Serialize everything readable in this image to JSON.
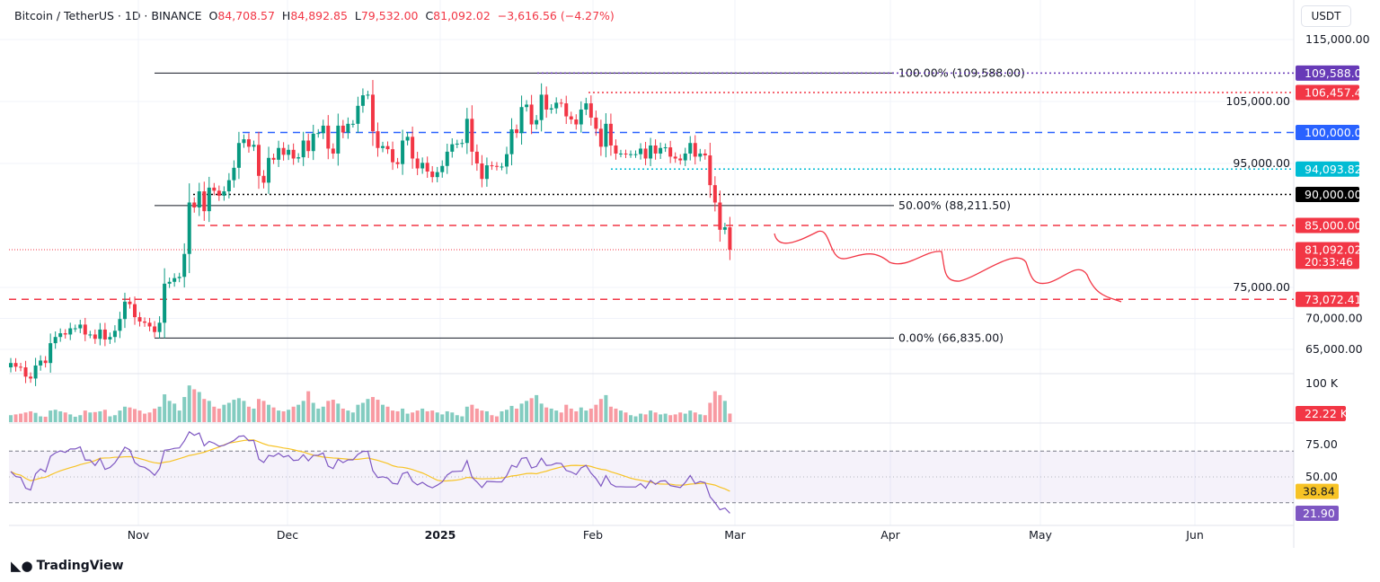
{
  "header": {
    "symbol": "Bitcoin / TetherUS · 1D · BINANCE",
    "o_label": "O",
    "o": "84,708.57",
    "h_label": "H",
    "h": "84,892.85",
    "l_label": "L",
    "l": "79,532.00",
    "c_label": "C",
    "c": "81,092.02",
    "change": "−3,616.56 (−4.27%)"
  },
  "currency": "USDT",
  "brand": "TradingView",
  "colors": {
    "up": "#089981",
    "down": "#f23645",
    "rsi": "#7e57c2",
    "rsi_ma": "#f7c325"
  },
  "chart_data": {
    "type": "candlestick",
    "start_date": "2024-10-06",
    "closes": [
      62800,
      62200,
      62100,
      60600,
      60300,
      62400,
      63200,
      62800,
      66000,
      67000,
      67600,
      67400,
      68400,
      68400,
      69000,
      67400,
      67400,
      66700,
      68200,
      66600,
      67000,
      68000,
      69900,
      72700,
      72300,
      70200,
      69500,
      69300,
      68700,
      67800,
      69300,
      75600,
      75900,
      76500,
      76700,
      80400,
      88700,
      87900,
      90500,
      87300,
      91100,
      90600,
      89800,
      90500,
      92300,
      94300,
      98300,
      98900,
      97700,
      98000,
      93000,
      91900,
      95900,
      95600,
      97500,
      96400,
      97200,
      95800,
      96000,
      98700,
      97000,
      99800,
      99900,
      101100,
      97400,
      96600,
      101100,
      100000,
      101400,
      101400,
      104300,
      106000,
      106100,
      100200,
      97500,
      97800,
      97300,
      95200,
      94900,
      98700,
      99300,
      95800,
      94200,
      95100,
      93700,
      92800,
      93600,
      94600,
      96900,
      98100,
      98200,
      98300,
      102200,
      96900,
      95000,
      92500,
      94700,
      94600,
      94500,
      94500,
      96500,
      100500,
      99900,
      104100,
      104500,
      101300,
      102000,
      106100,
      103700,
      103900,
      104800,
      104700,
      102600,
      102100,
      101300,
      103700,
      104700,
      102400,
      100600,
      97700,
      101400,
      97900,
      96600,
      96600,
      96500,
      96500,
      96500,
      97400,
      95800,
      97900,
      96600,
      97500,
      97600,
      96100,
      95800,
      95500,
      96600,
      98300,
      96100,
      96600,
      96300,
      91500,
      88700,
      84300,
      84700,
      81092.02
    ],
    "volumes_k": [
      18,
      20,
      22,
      25,
      28,
      24,
      15,
      14,
      30,
      32,
      28,
      25,
      20,
      14,
      18,
      30,
      25,
      26,
      28,
      32,
      15,
      18,
      30,
      40,
      38,
      34,
      30,
      22,
      25,
      35,
      40,
      72,
      55,
      48,
      30,
      65,
      95,
      85,
      78,
      60,
      55,
      40,
      35,
      45,
      50,
      58,
      62,
      55,
      40,
      35,
      60,
      55,
      45,
      38,
      30,
      28,
      32,
      40,
      45,
      55,
      80,
      50,
      35,
      40,
      55,
      58,
      48,
      35,
      30,
      25,
      45,
      50,
      60,
      65,
      58,
      45,
      40,
      30,
      28,
      35,
      22,
      25,
      30,
      35,
      28,
      30,
      25,
      20,
      28,
      25,
      18,
      15,
      40,
      45,
      35,
      30,
      28,
      18,
      15,
      28,
      32,
      42,
      35,
      48,
      55,
      62,
      70,
      48,
      38,
      35,
      30,
      25,
      45,
      35,
      28,
      38,
      30,
      35,
      45,
      60,
      70,
      40,
      35,
      30,
      25,
      18,
      15,
      22,
      20,
      30,
      25,
      20,
      22,
      18,
      20,
      25,
      22,
      30,
      25,
      20,
      18,
      50,
      80,
      70,
      55,
      22.22
    ],
    "price_axis": {
      "ticks": [
        "115,000.00",
        "105,000.00",
        "95,000.00",
        "75,000.00",
        "70,000.00",
        "65,000.00"
      ],
      "tick_values": [
        115000,
        105000,
        95000,
        75000,
        70000,
        65000
      ],
      "range": [
        60000,
        117000
      ]
    },
    "time_axis": [
      "Nov",
      "Dec",
      "2025",
      "Feb",
      "Mar",
      "Apr",
      "May",
      "Jun"
    ],
    "levels": [
      {
        "value": 109588,
        "label": "109,588.00",
        "color": "#673ab7",
        "style": "dotted"
      },
      {
        "value": 106457.44,
        "label": "106,457.44",
        "color": "#f23645",
        "style": "dotted"
      },
      {
        "value": 100000,
        "label": "100,000.00",
        "color": "#2962ff",
        "style": "dashed"
      },
      {
        "value": 94093.82,
        "label": "94,093.82",
        "color": "#00bcd4",
        "style": "dotted"
      },
      {
        "value": 90000,
        "label": "90,000.00",
        "color": "#000000",
        "style": "dotted"
      },
      {
        "value": 85000,
        "label": "85,000.00",
        "color": "#f23645",
        "style": "dashed"
      },
      {
        "value": 81092.02,
        "label": "81,092.02",
        "sublabel": "20:33:46",
        "color": "#f23645",
        "style": "dotted"
      },
      {
        "value": 73072.41,
        "label": "73,072.41",
        "color": "#f23645",
        "style": "dashed"
      }
    ],
    "fibonacci": [
      {
        "value": 109588,
        "label": "100.00% (109,588.00)"
      },
      {
        "value": 88211.5,
        "label": "50.00% (88,211.50)"
      },
      {
        "value": 66835,
        "label": "0.00% (66,835.00)"
      }
    ],
    "volume_axis": {
      "tick": "100 K",
      "last": "22.22 K"
    },
    "rsi": {
      "ticks": [
        "75.00",
        "50.00"
      ],
      "tick_values": [
        75,
        50
      ],
      "bands": [
        70,
        30
      ],
      "rsi_ma_last": "38.84",
      "rsi_last": "21.90",
      "ma_value": 38.84,
      "rsi_value": 21.9
    }
  }
}
